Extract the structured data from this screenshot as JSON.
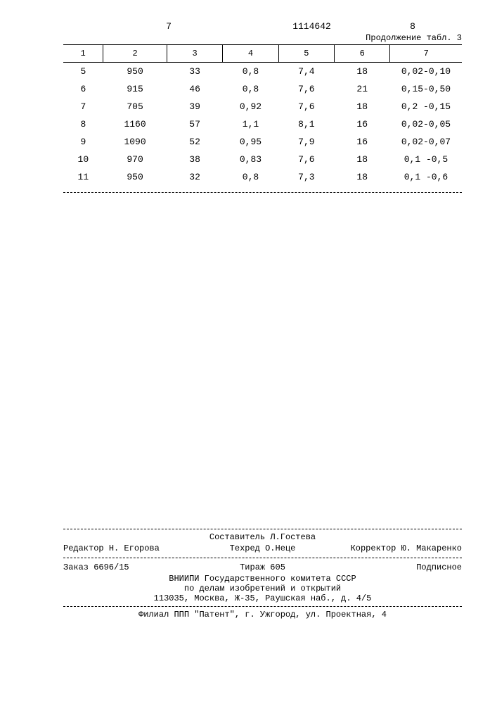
{
  "header": {
    "page_left": "7",
    "doc_number": "1114642",
    "page_right": "8",
    "continuation": "Продолжение табл. 3"
  },
  "table": {
    "type": "table",
    "columns": [
      "1",
      "2",
      "3",
      "4",
      "5",
      "6",
      "7"
    ],
    "col_widths_pct": [
      10,
      16,
      14,
      14,
      14,
      14,
      18
    ],
    "header_border_color": "#000000",
    "cell_fontsize": 13,
    "header_fontsize": 12,
    "rows": [
      [
        "5",
        "950",
        "33",
        "0,8",
        "7,4",
        "18",
        "0,02-0,10"
      ],
      [
        "6",
        "915",
        "46",
        "0,8",
        "7,6",
        "21",
        "0,15-0,50"
      ],
      [
        "7",
        "705",
        "39",
        "0,92",
        "7,6",
        "18",
        "0,2 -0,15"
      ],
      [
        "8",
        "1160",
        "57",
        "1,1",
        "8,1",
        "16",
        "0,02-0,05"
      ],
      [
        "9",
        "1090",
        "52",
        "0,95",
        "7,9",
        "16",
        "0,02-0,07"
      ],
      [
        "10",
        "970",
        "38",
        "0,83",
        "7,6",
        "18",
        "0,1 -0,5"
      ],
      [
        "11",
        "950",
        "32",
        "0,8",
        "7,3",
        "18",
        "0,1 -0,6"
      ]
    ]
  },
  "footer": {
    "composer_label": "Составитель",
    "composer_name": "Л.Гостева",
    "editor_label": "Редактор",
    "editor_name": "Н. Егорова",
    "tech_label": "Техред",
    "tech_name": "О.Неце",
    "corrector_label": "Корректор",
    "corrector_name": "Ю. Макаренко",
    "order": "Заказ 6696/15",
    "tirage": "Тираж 605",
    "subscription": "Подписное",
    "org1": "ВНИИПИ Государственного комитета СССР",
    "org2": "по делам изобретений и открытий",
    "address": "113035, Москва, Ж-35, Раушская наб., д. 4/5",
    "branch": "Филиал ППП \"Патент\", г. Ужгород, ул. Проектная, 4"
  }
}
